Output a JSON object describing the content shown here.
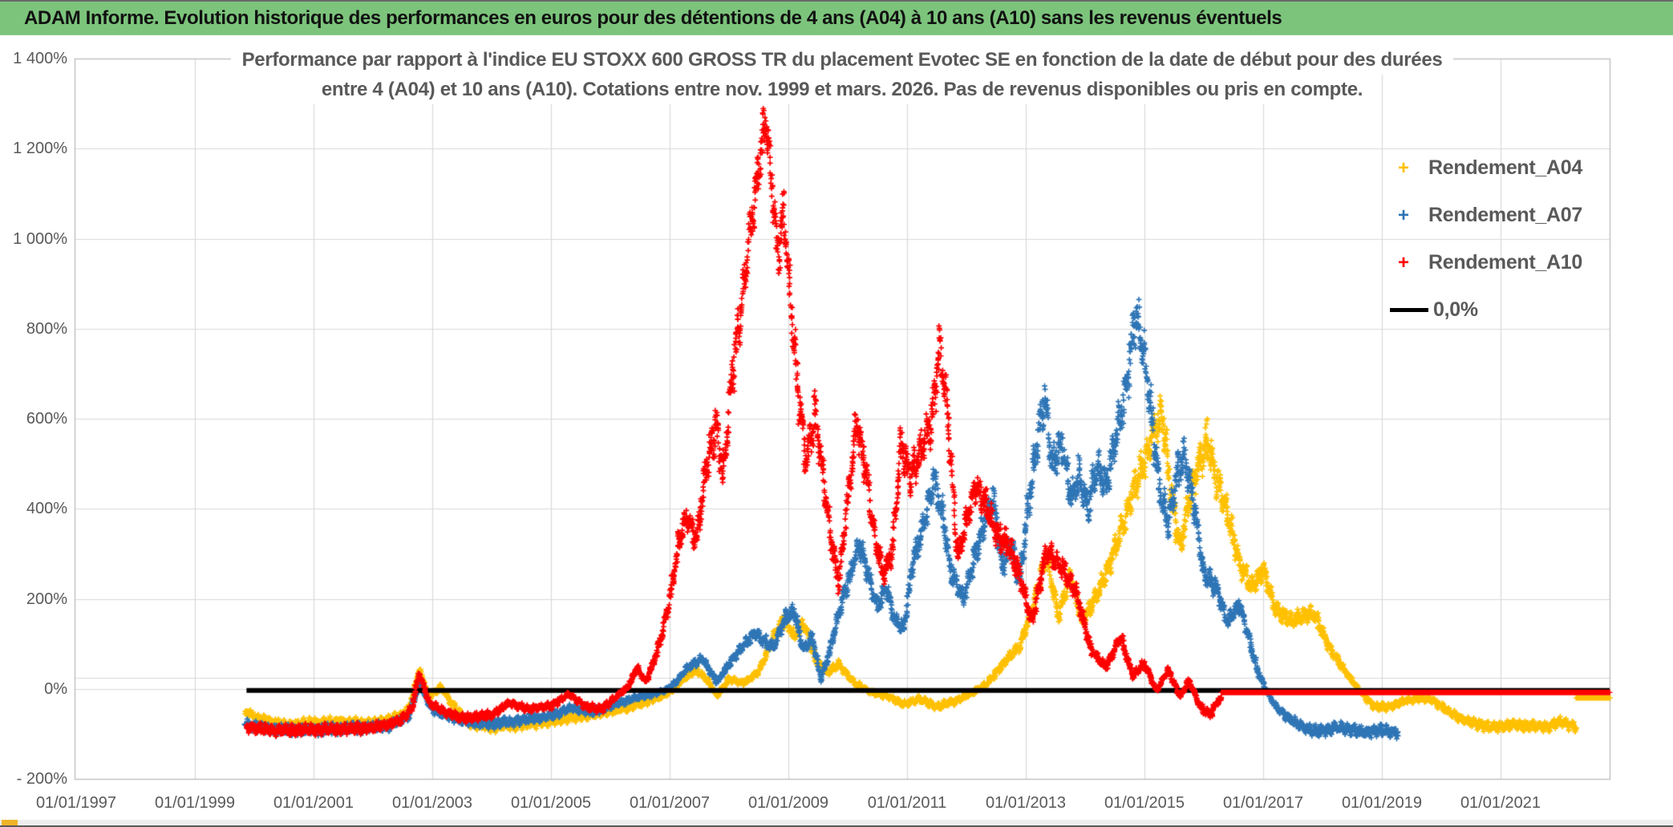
{
  "header": {
    "title": "ADAM Informe. Evolution historique des performances en euros pour des détentions de 4 ans (A04) à 10 ans (A10) sans les revenus éventuels"
  },
  "chart_data": {
    "type": "scatter",
    "title_line1": "Performance par rapport à l'indice EU STOXX 600 GROSS TR  du placement Evotec SE en fonction de la date de début pour des durées",
    "title_line2": "entre 4 (A04) et 10 ans (A10). Cotations entre nov. 1999 et mars. 2026. Pas de revenus disponibles ou pris en compte.",
    "ylabel": "",
    "xlabel": "",
    "ylim": [
      -200,
      1400
    ],
    "x_domain_years": [
      1997.0,
      2022.85
    ],
    "grid": true,
    "legend_position": "upper-right",
    "y_ticks": [
      "1 400%",
      "1 200%",
      "1 000%",
      "800%",
      "600%",
      "400%",
      "200%",
      "0%",
      "- 200%"
    ],
    "y_tick_values": [
      1400,
      1200,
      1000,
      800,
      600,
      400,
      200,
      0,
      -200
    ],
    "x_ticks": [
      "01/01/1997",
      "01/01/1999",
      "01/01/2001",
      "01/01/2003",
      "01/01/2005",
      "01/01/2007",
      "01/01/2009",
      "01/01/2011",
      "01/01/2013",
      "01/01/2015",
      "01/01/2017",
      "01/01/2019",
      "01/01/2021"
    ],
    "x_tick_years": [
      1997,
      1999,
      2001,
      2003,
      2005,
      2007,
      2009,
      2011,
      2013,
      2015,
      2017,
      2019,
      2021
    ],
    "colors": {
      "a04": "#FFC000",
      "a07": "#2E75B6",
      "a10": "#FF0000",
      "zero_line": "#000000",
      "grid": "#D9D9D9",
      "plot_border": "#BFBFBF",
      "axis_text": "#595959",
      "header_green": "#7CC47C",
      "gold_accent": "#F0B428"
    },
    "legend": [
      {
        "label": "Rendement_A04",
        "marker": "+",
        "color": "#FFC000"
      },
      {
        "label": "Rendement_A07",
        "marker": "+",
        "color": "#2E75B6"
      },
      {
        "label": "Rendement_A10",
        "marker": "+",
        "color": "#FF0000"
      },
      {
        "label": "0,0%",
        "marker": "line",
        "color": "#000000"
      }
    ],
    "series": [
      {
        "name": "Rendement_A04",
        "color": "#FFC000",
        "marker": "+",
        "seed": 11,
        "phase": 0.7,
        "start": 1999.85,
        "end": 2022.84,
        "tail_flat_from": 2022.28,
        "tail_value_pct": -20,
        "keypoints": [
          [
            1999.85,
            -50
          ],
          [
            2000.1,
            -68
          ],
          [
            2000.5,
            -80
          ],
          [
            2001.0,
            -76
          ],
          [
            2001.5,
            -73
          ],
          [
            2002.0,
            -78
          ],
          [
            2002.45,
            -62
          ],
          [
            2002.62,
            -40
          ],
          [
            2002.78,
            42
          ],
          [
            2002.95,
            -18
          ],
          [
            2003.15,
            5
          ],
          [
            2003.3,
            -28
          ],
          [
            2003.6,
            -76
          ],
          [
            2004.0,
            -84
          ],
          [
            2004.5,
            -80
          ],
          [
            2005.0,
            -72
          ],
          [
            2005.5,
            -62
          ],
          [
            2006.0,
            -50
          ],
          [
            2006.35,
            -40
          ],
          [
            2006.7,
            -25
          ],
          [
            2007.0,
            -8
          ],
          [
            2007.2,
            20
          ],
          [
            2007.45,
            42
          ],
          [
            2007.6,
            25
          ],
          [
            2007.8,
            -15
          ],
          [
            2008.0,
            22
          ],
          [
            2008.25,
            12
          ],
          [
            2008.5,
            38
          ],
          [
            2008.75,
            115
          ],
          [
            2008.95,
            160
          ],
          [
            2009.1,
            115
          ],
          [
            2009.25,
            148
          ],
          [
            2009.45,
            65
          ],
          [
            2009.65,
            35
          ],
          [
            2009.85,
            55
          ],
          [
            2010.1,
            15
          ],
          [
            2010.4,
            -8
          ],
          [
            2010.7,
            -18
          ],
          [
            2010.95,
            -35
          ],
          [
            2011.2,
            -22
          ],
          [
            2011.5,
            -40
          ],
          [
            2011.8,
            -28
          ],
          [
            2012.05,
            -12
          ],
          [
            2012.35,
            12
          ],
          [
            2012.65,
            60
          ],
          [
            2012.9,
            95
          ],
          [
            2013.1,
            175
          ],
          [
            2013.35,
            295
          ],
          [
            2013.55,
            160
          ],
          [
            2013.75,
            255
          ],
          [
            2013.95,
            150
          ],
          [
            2014.15,
            195
          ],
          [
            2014.4,
            270
          ],
          [
            2014.65,
            370
          ],
          [
            2014.9,
            470
          ],
          [
            2015.1,
            540
          ],
          [
            2015.3,
            615
          ],
          [
            2015.45,
            430
          ],
          [
            2015.6,
            310
          ],
          [
            2015.8,
            450
          ],
          [
            2016.05,
            555
          ],
          [
            2016.2,
            470
          ],
          [
            2016.4,
            390
          ],
          [
            2016.6,
            280
          ],
          [
            2016.8,
            225
          ],
          [
            2017.0,
            265
          ],
          [
            2017.2,
            180
          ],
          [
            2017.45,
            150
          ],
          [
            2017.65,
            160
          ],
          [
            2017.85,
            168
          ],
          [
            2018.1,
            95
          ],
          [
            2018.35,
            45
          ],
          [
            2018.6,
            0
          ],
          [
            2018.85,
            -38
          ],
          [
            2019.1,
            -42
          ],
          [
            2019.35,
            -28
          ],
          [
            2019.6,
            -22
          ],
          [
            2019.85,
            -25
          ],
          [
            2020.1,
            -48
          ],
          [
            2020.35,
            -68
          ],
          [
            2020.6,
            -78
          ],
          [
            2020.9,
            -85
          ],
          [
            2021.2,
            -80
          ],
          [
            2021.5,
            -82
          ],
          [
            2021.8,
            -84
          ],
          [
            2022.0,
            -72
          ],
          [
            2022.15,
            -80
          ],
          [
            2022.25,
            -85
          ]
        ]
      },
      {
        "name": "Rendement_A07",
        "color": "#2E75B6",
        "marker": "+",
        "seed": 23,
        "phase": 2.9,
        "start": 1999.85,
        "end": 2019.27,
        "tail_flat_from": null,
        "tail_value_pct": null,
        "keypoints": [
          [
            1999.85,
            -78
          ],
          [
            2000.2,
            -88
          ],
          [
            2000.6,
            -91
          ],
          [
            2001.2,
            -90
          ],
          [
            2001.8,
            -87
          ],
          [
            2002.3,
            -82
          ],
          [
            2002.6,
            -60
          ],
          [
            2002.78,
            12
          ],
          [
            2003.0,
            -48
          ],
          [
            2003.25,
            -60
          ],
          [
            2003.55,
            -72
          ],
          [
            2004.0,
            -78
          ],
          [
            2004.5,
            -70
          ],
          [
            2005.0,
            -60
          ],
          [
            2005.35,
            -42
          ],
          [
            2005.7,
            -52
          ],
          [
            2006.0,
            -38
          ],
          [
            2006.3,
            -25
          ],
          [
            2006.6,
            -15
          ],
          [
            2006.9,
            -5
          ],
          [
            2007.1,
            12
          ],
          [
            2007.3,
            48
          ],
          [
            2007.55,
            68
          ],
          [
            2007.8,
            15
          ],
          [
            2008.0,
            55
          ],
          [
            2008.2,
            88
          ],
          [
            2008.45,
            125
          ],
          [
            2008.6,
            105
          ],
          [
            2008.75,
            92
          ],
          [
            2008.95,
            158
          ],
          [
            2009.1,
            172
          ],
          [
            2009.25,
            85
          ],
          [
            2009.4,
            115
          ],
          [
            2009.55,
            22
          ],
          [
            2009.7,
            85
          ],
          [
            2009.9,
            195
          ],
          [
            2010.05,
            255
          ],
          [
            2010.2,
            325
          ],
          [
            2010.35,
            250
          ],
          [
            2010.5,
            180
          ],
          [
            2010.65,
            228
          ],
          [
            2010.8,
            150
          ],
          [
            2010.95,
            135
          ],
          [
            2011.1,
            285
          ],
          [
            2011.25,
            345
          ],
          [
            2011.45,
            465
          ],
          [
            2011.6,
            385
          ],
          [
            2011.75,
            255
          ],
          [
            2011.95,
            198
          ],
          [
            2012.1,
            278
          ],
          [
            2012.3,
            368
          ],
          [
            2012.45,
            432
          ],
          [
            2012.6,
            268
          ],
          [
            2012.75,
            325
          ],
          [
            2012.9,
            238
          ],
          [
            2013.05,
            415
          ],
          [
            2013.2,
            555
          ],
          [
            2013.32,
            648
          ],
          [
            2013.45,
            495
          ],
          [
            2013.6,
            545
          ],
          [
            2013.78,
            418
          ],
          [
            2013.9,
            475
          ],
          [
            2014.05,
            398
          ],
          [
            2014.2,
            495
          ],
          [
            2014.35,
            448
          ],
          [
            2014.5,
            545
          ],
          [
            2014.68,
            660
          ],
          [
            2014.85,
            828
          ],
          [
            2015.0,
            742
          ],
          [
            2015.1,
            628
          ],
          [
            2015.25,
            448
          ],
          [
            2015.4,
            368
          ],
          [
            2015.55,
            478
          ],
          [
            2015.68,
            515
          ],
          [
            2015.85,
            395
          ],
          [
            2016.0,
            255
          ],
          [
            2016.2,
            228
          ],
          [
            2016.4,
            150
          ],
          [
            2016.6,
            188
          ],
          [
            2016.75,
            118
          ],
          [
            2016.9,
            42
          ],
          [
            2017.05,
            -2
          ],
          [
            2017.2,
            -38
          ],
          [
            2017.4,
            -62
          ],
          [
            2017.6,
            -80
          ],
          [
            2017.8,
            -92
          ],
          [
            2018.0,
            -95
          ],
          [
            2018.2,
            -85
          ],
          [
            2018.45,
            -90
          ],
          [
            2018.7,
            -96
          ],
          [
            2018.95,
            -92
          ],
          [
            2019.27,
            -98
          ]
        ]
      },
      {
        "name": "Rendement_A10",
        "color": "#FF0000",
        "marker": "+",
        "seed": 37,
        "phase": 5.1,
        "start": 1999.87,
        "end": 2022.84,
        "tail_flat_from": 2016.3,
        "tail_value_pct": -8,
        "keypoints": [
          [
            1999.87,
            -84
          ],
          [
            2000.3,
            -92
          ],
          [
            2000.8,
            -91
          ],
          [
            2001.4,
            -90
          ],
          [
            2002.0,
            -86
          ],
          [
            2002.45,
            -72
          ],
          [
            2002.65,
            -45
          ],
          [
            2002.78,
            34
          ],
          [
            2002.95,
            -32
          ],
          [
            2003.2,
            -50
          ],
          [
            2003.5,
            -66
          ],
          [
            2004.0,
            -58
          ],
          [
            2004.3,
            -30
          ],
          [
            2004.6,
            -45
          ],
          [
            2005.0,
            -38
          ],
          [
            2005.3,
            -12
          ],
          [
            2005.6,
            -40
          ],
          [
            2005.85,
            -45
          ],
          [
            2006.1,
            -18
          ],
          [
            2006.3,
            5
          ],
          [
            2006.45,
            48
          ],
          [
            2006.6,
            15
          ],
          [
            2006.8,
            85
          ],
          [
            2007.0,
            195
          ],
          [
            2007.15,
            320
          ],
          [
            2007.3,
            385
          ],
          [
            2007.45,
            330
          ],
          [
            2007.6,
            480
          ],
          [
            2007.78,
            590
          ],
          [
            2007.9,
            470
          ],
          [
            2008.05,
            690
          ],
          [
            2008.2,
            840
          ],
          [
            2008.35,
            1010
          ],
          [
            2008.5,
            1160
          ],
          [
            2008.62,
            1268
          ],
          [
            2008.72,
            1130
          ],
          [
            2008.82,
            965
          ],
          [
            2008.92,
            1060
          ],
          [
            2009.02,
            890
          ],
          [
            2009.15,
            690
          ],
          [
            2009.3,
            505
          ],
          [
            2009.45,
            610
          ],
          [
            2009.6,
            460
          ],
          [
            2009.72,
            330
          ],
          [
            2009.85,
            235
          ],
          [
            2010.0,
            420
          ],
          [
            2010.15,
            595
          ],
          [
            2010.3,
            490
          ],
          [
            2010.45,
            345
          ],
          [
            2010.6,
            255
          ],
          [
            2010.75,
            300
          ],
          [
            2010.9,
            545
          ],
          [
            2011.05,
            470
          ],
          [
            2011.2,
            520
          ],
          [
            2011.4,
            585
          ],
          [
            2011.55,
            752
          ],
          [
            2011.7,
            590
          ],
          [
            2011.85,
            295
          ],
          [
            2012.0,
            372
          ],
          [
            2012.15,
            448
          ],
          [
            2012.3,
            420
          ],
          [
            2012.5,
            345
          ],
          [
            2012.7,
            318
          ],
          [
            2012.9,
            252
          ],
          [
            2013.1,
            148
          ],
          [
            2013.35,
            305
          ],
          [
            2013.6,
            272
          ],
          [
            2013.85,
            215
          ],
          [
            2014.1,
            85
          ],
          [
            2014.35,
            48
          ],
          [
            2014.6,
            115
          ],
          [
            2014.8,
            28
          ],
          [
            2015.0,
            58
          ],
          [
            2015.2,
            -5
          ],
          [
            2015.4,
            42
          ],
          [
            2015.6,
            -18
          ],
          [
            2015.75,
            18
          ],
          [
            2015.95,
            -42
          ],
          [
            2016.1,
            -58
          ],
          [
            2016.25,
            -25
          ]
        ]
      },
      {
        "name": "0,0%",
        "type": "line",
        "color": "#000000",
        "value_pct": 0,
        "start": 1999.87,
        "end": 2022.85
      }
    ]
  }
}
